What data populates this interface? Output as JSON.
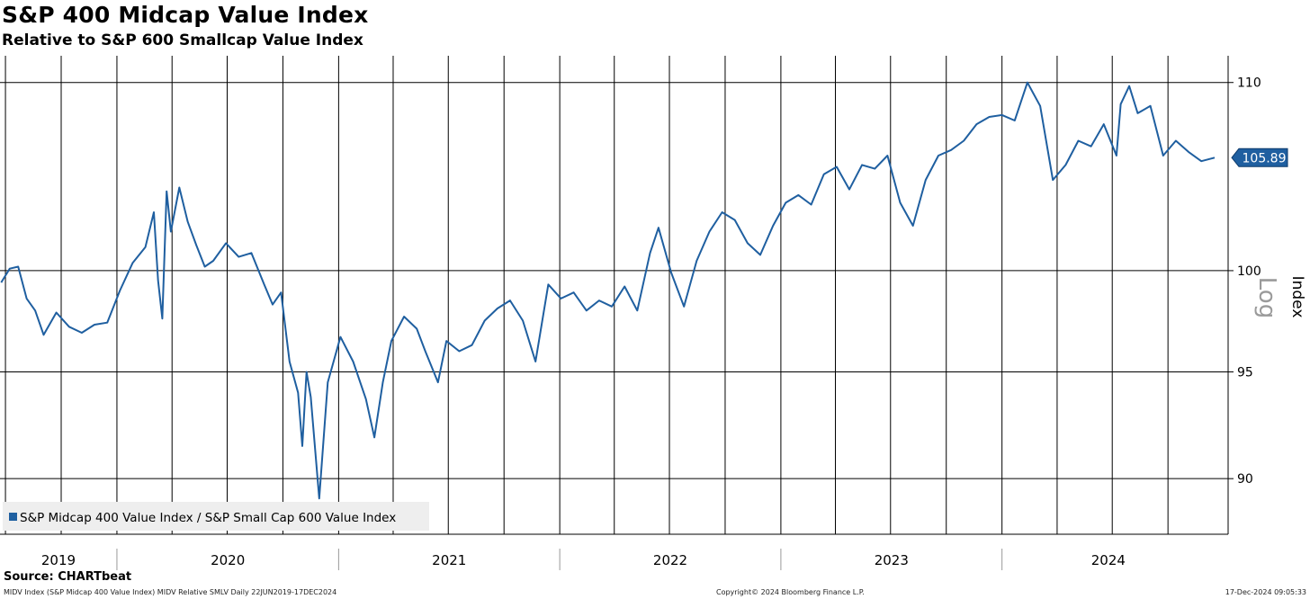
{
  "chart_data": {
    "type": "line",
    "title": "S&P 400 Midcap Value Index",
    "subtitle": "Relative to S&P 600 Smallcap Value Index",
    "ylabel": "Index",
    "yscale": "log",
    "scale_label": "Log",
    "ylim": [
      87.5,
      111.5
    ],
    "y_ticks": [
      90,
      95,
      100,
      110
    ],
    "x_range": [
      "2019-06-22",
      "2024-12-17"
    ],
    "x_year_labels": [
      "2019",
      "2020",
      "2021",
      "2022",
      "2023",
      "2024"
    ],
    "grid": true,
    "legend": "bottom-left",
    "series_color": "#1f5fa0",
    "last_value_label": "105.89",
    "series": [
      {
        "name": "S&P Midcap 400 Value Index / S&P Small Cap 600 Value Index",
        "x": [
          "2019-06-24",
          "2019-07-08",
          "2019-07-22",
          "2019-08-05",
          "2019-08-19",
          "2019-09-02",
          "2019-09-23",
          "2019-10-14",
          "2019-11-04",
          "2019-11-25",
          "2019-12-16",
          "2020-01-06",
          "2020-01-27",
          "2020-02-17",
          "2020-03-02",
          "2020-03-09",
          "2020-03-16",
          "2020-03-23",
          "2020-03-30",
          "2020-04-13",
          "2020-04-27",
          "2020-05-11",
          "2020-05-25",
          "2020-06-08",
          "2020-06-29",
          "2020-07-20",
          "2020-08-10",
          "2020-08-31",
          "2020-09-14",
          "2020-09-28",
          "2020-10-12",
          "2020-10-26",
          "2020-11-02",
          "2020-11-09",
          "2020-11-16",
          "2020-11-30",
          "2020-12-14",
          "2021-01-04",
          "2021-01-25",
          "2021-02-15",
          "2021-03-01",
          "2021-03-15",
          "2021-03-29",
          "2021-04-19",
          "2021-05-10",
          "2021-05-24",
          "2021-06-14",
          "2021-06-28",
          "2021-07-19",
          "2021-08-09",
          "2021-08-30",
          "2021-09-20",
          "2021-10-11",
          "2021-11-01",
          "2021-11-22",
          "2021-12-13",
          "2022-01-03",
          "2022-01-24",
          "2022-02-14",
          "2022-03-07",
          "2022-03-28",
          "2022-04-18",
          "2022-05-09",
          "2022-05-30",
          "2022-06-13",
          "2022-07-04",
          "2022-07-25",
          "2022-08-15",
          "2022-09-05",
          "2022-09-26",
          "2022-10-17",
          "2022-11-07",
          "2022-11-28",
          "2022-12-19",
          "2023-01-09",
          "2023-01-30",
          "2023-02-20",
          "2023-03-13",
          "2023-04-03",
          "2023-04-24",
          "2023-05-15",
          "2023-06-05",
          "2023-06-26",
          "2023-07-17",
          "2023-08-07",
          "2023-08-28",
          "2023-09-18",
          "2023-10-09",
          "2023-10-30",
          "2023-11-20",
          "2023-12-11",
          "2024-01-01",
          "2024-01-22",
          "2024-02-12",
          "2024-03-04",
          "2024-03-25",
          "2024-04-15",
          "2024-05-06",
          "2024-05-27",
          "2024-06-17",
          "2024-07-08",
          "2024-07-15",
          "2024-07-29",
          "2024-08-12",
          "2024-09-02",
          "2024-09-23",
          "2024-10-14",
          "2024-11-04",
          "2024-11-25",
          "2024-12-17"
        ],
        "values": [
          99.4,
          100.1,
          100.2,
          98.6,
          98.0,
          96.8,
          97.9,
          97.2,
          96.9,
          97.3,
          97.4,
          99.0,
          100.4,
          101.2,
          103.0,
          99.5,
          97.6,
          104.1,
          102.0,
          104.3,
          102.5,
          101.3,
          100.2,
          100.5,
          101.4,
          100.7,
          100.9,
          99.3,
          98.3,
          98.9,
          95.5,
          94.0,
          91.5,
          95.0,
          93.8,
          89.1,
          94.5,
          96.7,
          95.5,
          93.7,
          91.9,
          94.5,
          96.5,
          97.7,
          97.1,
          96.0,
          94.5,
          96.5,
          96.0,
          96.3,
          97.5,
          98.1,
          98.5,
          97.5,
          95.5,
          99.3,
          98.6,
          98.9,
          98.0,
          98.5,
          98.2,
          99.2,
          98.0,
          100.9,
          102.2,
          99.9,
          98.2,
          100.5,
          102.0,
          103.0,
          102.6,
          101.4,
          100.8,
          102.3,
          103.5,
          103.9,
          103.4,
          105.0,
          105.4,
          104.2,
          105.5,
          105.3,
          106.0,
          103.5,
          102.3,
          104.7,
          106.0,
          106.3,
          106.8,
          107.7,
          108.1,
          108.2,
          107.9,
          110.0,
          108.7,
          104.7,
          105.5,
          106.8,
          106.5,
          107.7,
          106.0,
          108.8,
          109.8,
          108.3,
          108.7,
          106.0,
          106.8,
          106.2,
          105.7,
          105.89
        ]
      }
    ]
  },
  "footer": {
    "source": "Source: CHARTbeat",
    "left": "MIDV Index (S&P Midcap 400 Value Index) MIDV Relative SMLV  Daily 22JUN2019-17DEC2024",
    "center": "Copyright© 2024 Bloomberg Finance L.P.",
    "right": "17-Dec-2024 09:05:33"
  }
}
